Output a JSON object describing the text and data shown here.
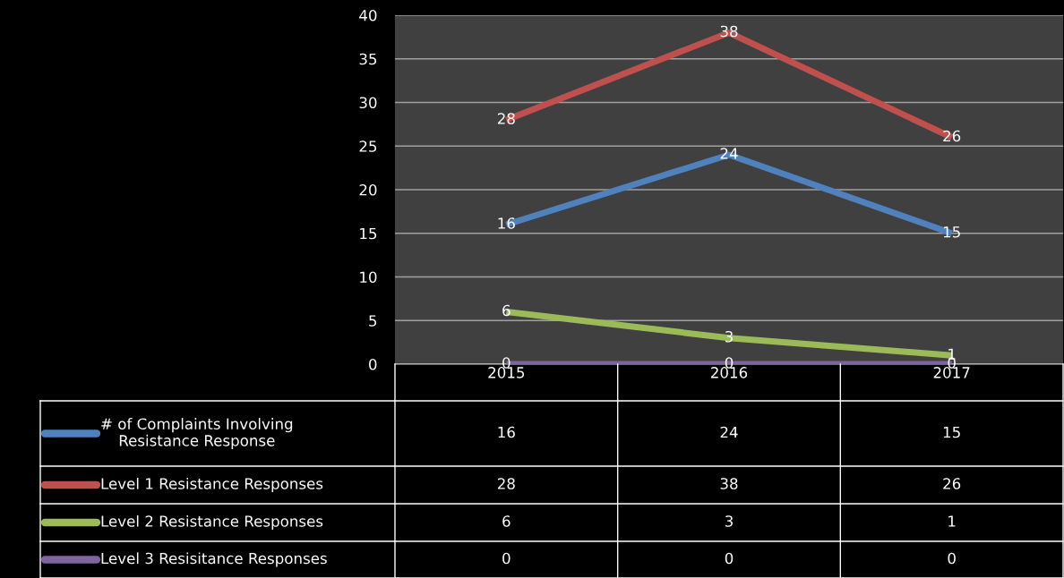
{
  "chart_data": {
    "type": "line",
    "categories": [
      "2015",
      "2016",
      "2017"
    ],
    "series": [
      {
        "name": "# of Complaints Involving Resistance Response",
        "color": "#4f81bd",
        "values": [
          16,
          24,
          15
        ],
        "value_labels": [
          "16",
          "24",
          "15"
        ]
      },
      {
        "name": "Level 1 Resistance Responses",
        "color": "#c0504d",
        "values": [
          28,
          38,
          26
        ],
        "value_labels": [
          "28",
          "38",
          "26"
        ]
      },
      {
        "name": "Level 2 Resistance Responses",
        "color": "#9bbb59",
        "values": [
          6,
          3,
          1
        ],
        "value_labels": [
          "6",
          "3",
          "1"
        ]
      },
      {
        "name": "Level 3 Resisitance Responses",
        "color": "#8064a2",
        "values": [
          0,
          0,
          0
        ],
        "value_labels": [
          "0",
          "0",
          "0"
        ]
      }
    ],
    "ylim": [
      0,
      40
    ],
    "yticks": [
      0,
      5,
      10,
      15,
      20,
      25,
      30,
      35,
      40
    ],
    "grid": "y",
    "annotations": [
      "16",
      "24",
      "15",
      "28",
      "38",
      "26",
      "6",
      "3",
      "1",
      "0",
      "0",
      "0"
    ],
    "legend": "bottom",
    "marker": "none",
    "line_style": "solid"
  }
}
